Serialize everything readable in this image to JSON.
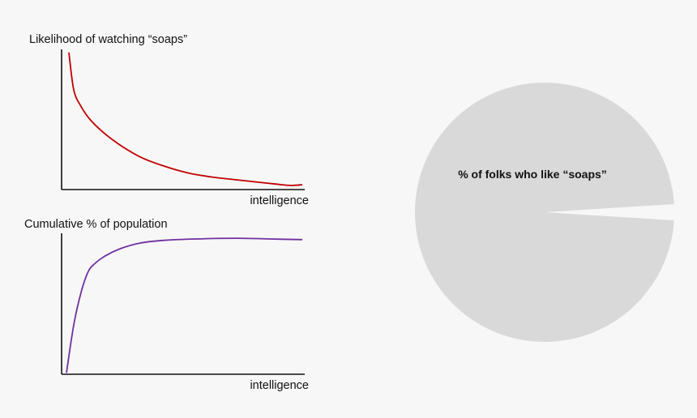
{
  "colors": {
    "background": "#f7f7f7",
    "axis": "#111111",
    "likelihood_line": "#c00000",
    "cumulative_line": "#7030a0",
    "pie_fill": "#d9d9d9"
  },
  "chart_data": [
    {
      "type": "line",
      "title": "Likelihood of watching “soaps”",
      "xlabel": "intelligence",
      "ylabel": "",
      "axis_ticks": false,
      "grid": false,
      "xlim": [
        0,
        1
      ],
      "ylim": [
        0,
        1
      ],
      "series": [
        {
          "color": "#c00000",
          "x": [
            0.03,
            0.05,
            0.08,
            0.12,
            0.18,
            0.25,
            0.33,
            0.42,
            0.52,
            0.62,
            0.72,
            0.8,
            0.88,
            0.94,
            0.99
          ],
          "y": [
            0.99,
            0.72,
            0.6,
            0.5,
            0.4,
            0.31,
            0.23,
            0.17,
            0.12,
            0.09,
            0.07,
            0.055,
            0.04,
            0.03,
            0.035
          ]
        }
      ]
    },
    {
      "type": "line",
      "title": "Cumulative % of population",
      "xlabel": "intelligence",
      "ylabel": "",
      "axis_ticks": false,
      "grid": false,
      "xlim": [
        0,
        1
      ],
      "ylim": [
        0,
        1
      ],
      "series": [
        {
          "color": "#7030a0",
          "x": [
            0.02,
            0.05,
            0.08,
            0.11,
            0.14,
            0.18,
            0.24,
            0.32,
            0.42,
            0.55,
            0.72,
            0.86,
            0.99
          ],
          "y": [
            0.01,
            0.35,
            0.58,
            0.73,
            0.79,
            0.84,
            0.89,
            0.93,
            0.95,
            0.96,
            0.965,
            0.96,
            0.955
          ]
        }
      ]
    },
    {
      "type": "pie",
      "slices": [
        {
          "label": "% of folks who like “soaps”",
          "value": 0.98,
          "color": "#d9d9d9"
        },
        {
          "label": "",
          "value": 0.02,
          "color": "none"
        }
      ]
    }
  ]
}
